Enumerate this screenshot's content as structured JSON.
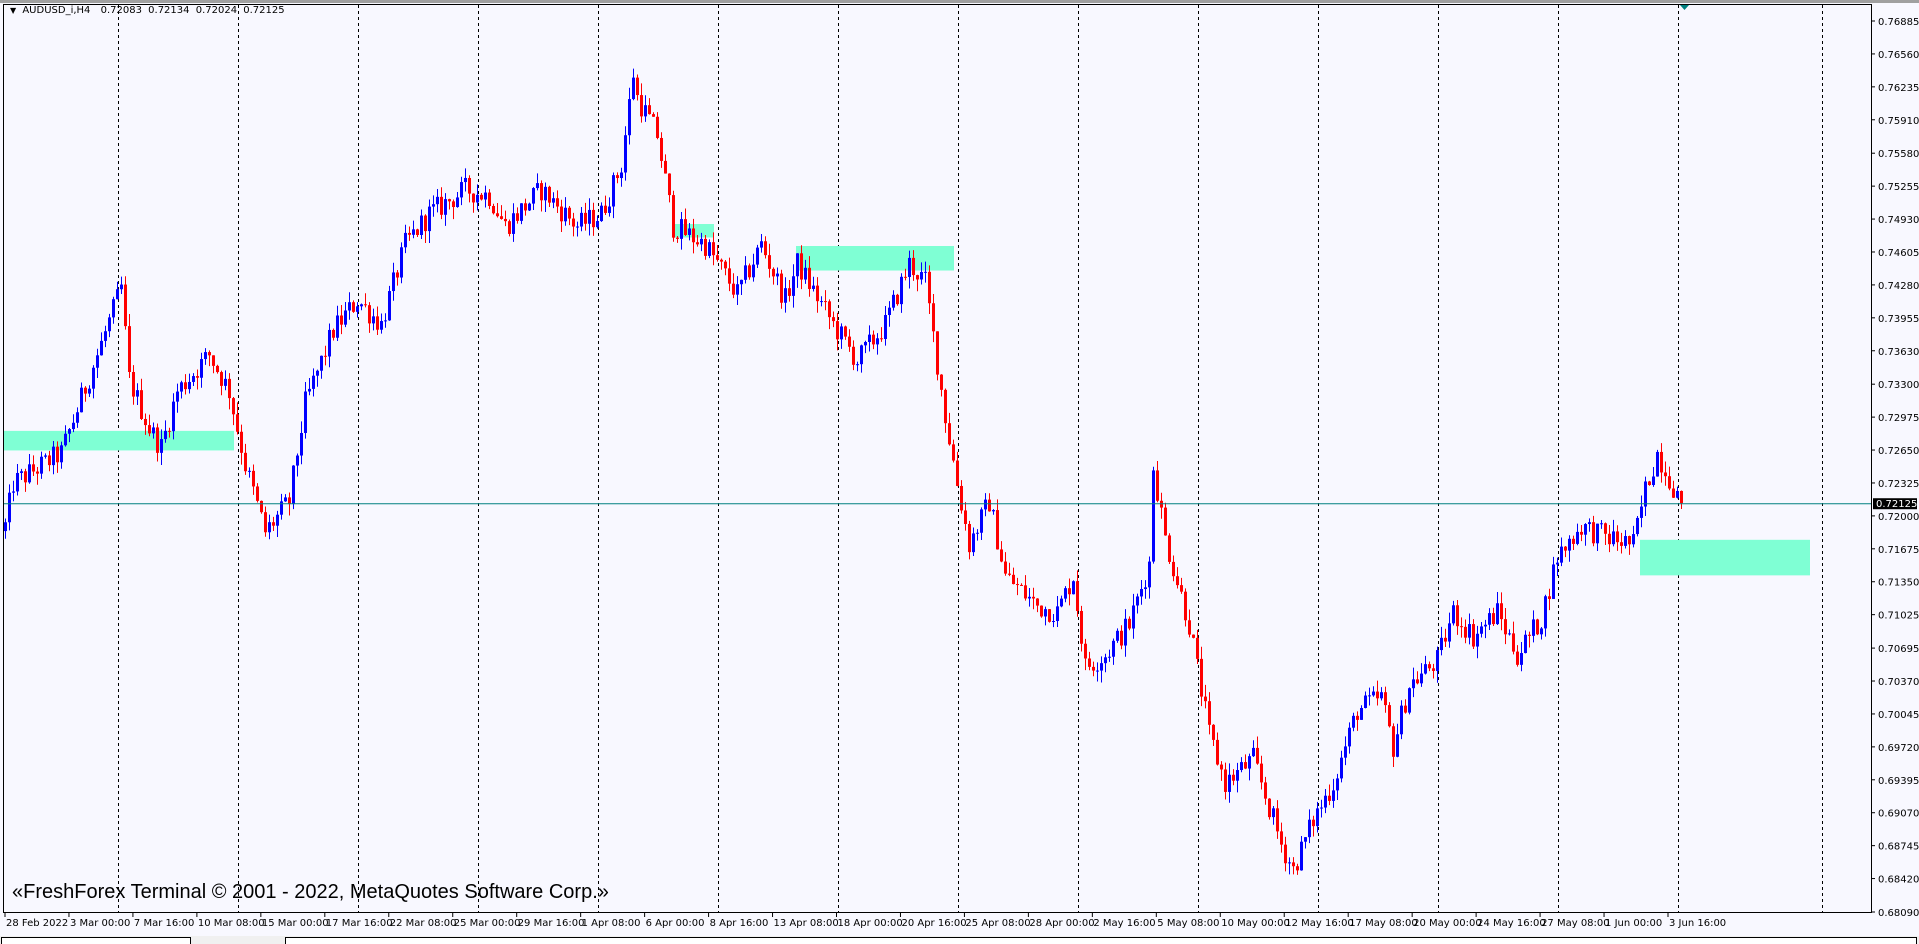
{
  "header": {
    "symbol": "AUDUSD_i,H4",
    "open": "0.72083",
    "high": "0.72134",
    "low": "0.72024",
    "close": "0.72125",
    "menu_icon": "triangle-down-icon"
  },
  "footer": {
    "copyright": "«FreshForex Terminal © 2001 - 2022, MetaQuotes Software Corp.»"
  },
  "colors": {
    "background": "#f8f8ff",
    "bull": "#0000ff",
    "bear": "#ff0000",
    "zone": "#7fffd4",
    "price_line": "#008080",
    "grid": "#000000"
  },
  "chart_data": {
    "type": "candlestick",
    "symbol": "AUDUSD_i",
    "timeframe": "H4",
    "bar_count": 420,
    "ylim": [
      0.6809,
      0.76885
    ],
    "grid": "vertical-dashed",
    "current_price": "0.72125",
    "price_ticks": [
      "0.76885",
      "0.76560",
      "0.76235",
      "0.75910",
      "0.75580",
      "0.75255",
      "0.74930",
      "0.74605",
      "0.74280",
      "0.73955",
      "0.73630",
      "0.73300",
      "0.72975",
      "0.72650",
      "0.72325",
      "0.72000",
      "0.71675",
      "0.71350",
      "0.71025",
      "0.70695",
      "0.70370",
      "0.70045",
      "0.69720",
      "0.69395",
      "0.69070",
      "0.68745",
      "0.68420",
      "0.68090"
    ],
    "time_ticks": [
      "28 Feb 2022",
      "3 Mar 00:00",
      "7 Mar 16:00",
      "10 Mar 08:00",
      "15 Mar 00:00",
      "17 Mar 16:00",
      "22 Mar 08:00",
      "25 Mar 00:00",
      "29 Mar 16:00",
      "1 Apr 08:00",
      "6 Apr 00:00",
      "8 Apr 16:00",
      "13 Apr 08:00",
      "18 Apr 00:00",
      "20 Apr 16:00",
      "25 Apr 08:00",
      "28 Apr 00:00",
      "2 May 16:00",
      "5 May 08:00",
      "10 May 00:00",
      "12 May 16:00",
      "17 May 08:00",
      "20 May 00:00",
      "24 May 16:00",
      "27 May 08:00",
      "1 Jun 00:00",
      "3 Jun 16:00"
    ],
    "close_path": [
      [
        0,
        0.719
      ],
      [
        2,
        0.7232
      ],
      [
        14,
        0.7262
      ],
      [
        23,
        0.7359
      ],
      [
        29,
        0.7425
      ],
      [
        31,
        0.7335
      ],
      [
        36,
        0.7286
      ],
      [
        39,
        0.7268
      ],
      [
        43,
        0.7323
      ],
      [
        51,
        0.7359
      ],
      [
        56,
        0.7323
      ],
      [
        60,
        0.725
      ],
      [
        65,
        0.7184
      ],
      [
        71,
        0.7214
      ],
      [
        75,
        0.7311
      ],
      [
        82,
        0.7383
      ],
      [
        88,
        0.7413
      ],
      [
        94,
        0.7389
      ],
      [
        100,
        0.7468
      ],
      [
        106,
        0.7498
      ],
      [
        115,
        0.7522
      ],
      [
        121,
        0.7516
      ],
      [
        125,
        0.7486
      ],
      [
        134,
        0.7522
      ],
      [
        143,
        0.7486
      ],
      [
        149,
        0.7498
      ],
      [
        154,
        0.7546
      ],
      [
        157,
        0.7637
      ],
      [
        158,
        0.7613
      ],
      [
        163,
        0.7576
      ],
      [
        167,
        0.7486
      ],
      [
        175,
        0.7468
      ],
      [
        183,
        0.7419
      ],
      [
        189,
        0.7468
      ],
      [
        195,
        0.7413
      ],
      [
        198,
        0.7449
      ],
      [
        207,
        0.7389
      ],
      [
        213,
        0.7353
      ],
      [
        220,
        0.7389
      ],
      [
        226,
        0.7449
      ],
      [
        230,
        0.7431
      ],
      [
        235,
        0.7298
      ],
      [
        238,
        0.7232
      ],
      [
        241,
        0.7172
      ],
      [
        246,
        0.7214
      ],
      [
        250,
        0.7141
      ],
      [
        258,
        0.7111
      ],
      [
        263,
        0.7105
      ],
      [
        267,
        0.7141
      ],
      [
        270,
        0.7051
      ],
      [
        275,
        0.7063
      ],
      [
        281,
        0.7093
      ],
      [
        286,
        0.7153
      ],
      [
        287,
        0.725
      ],
      [
        290,
        0.7178
      ],
      [
        296,
        0.7093
      ],
      [
        301,
        0.6984
      ],
      [
        305,
        0.6936
      ],
      [
        312,
        0.696
      ],
      [
        315,
        0.6924
      ],
      [
        319,
        0.6876
      ],
      [
        322,
        0.6851
      ],
      [
        327,
        0.69
      ],
      [
        332,
        0.6936
      ],
      [
        338,
        0.7008
      ],
      [
        344,
        0.7021
      ],
      [
        347,
        0.6972
      ],
      [
        351,
        0.7033
      ],
      [
        358,
        0.7057
      ],
      [
        362,
        0.7105
      ],
      [
        367,
        0.7081
      ],
      [
        373,
        0.7105
      ],
      [
        378,
        0.7063
      ],
      [
        384,
        0.7099
      ],
      [
        388,
        0.716
      ],
      [
        394,
        0.719
      ],
      [
        401,
        0.7178
      ],
      [
        407,
        0.7172
      ],
      [
        410,
        0.7226
      ],
      [
        413,
        0.7262
      ],
      [
        416,
        0.7238
      ],
      [
        419,
        0.72125
      ]
    ],
    "zones": [
      {
        "from_bar": 0,
        "to_bar": 57,
        "price_top": 0.72839,
        "price_bottom": 0.72646
      },
      {
        "from_bar": 167,
        "to_bar": 177,
        "price_top": 0.74881,
        "price_bottom": 0.74748
      },
      {
        "from_bar": 198,
        "to_bar": 237,
        "price_top": 0.74664,
        "price_bottom": 0.74422
      },
      {
        "from_bar": 409,
        "to_bar": 451,
        "price_top": 0.71764,
        "price_bottom": 0.71413
      }
    ]
  }
}
